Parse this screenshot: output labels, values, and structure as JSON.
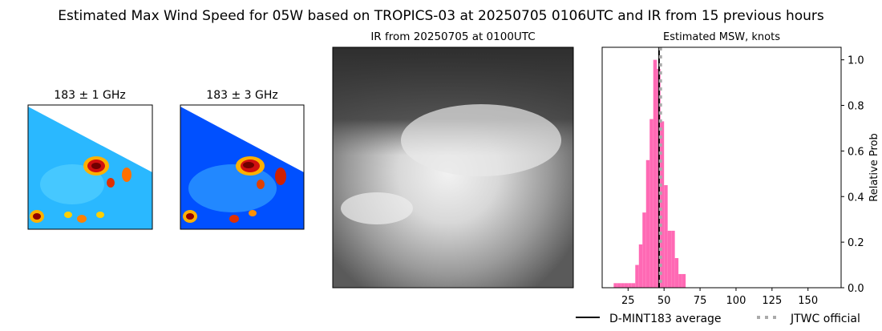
{
  "title": "Estimated Max Wind Speed for 05W based on TROPICS-03 at 20250705 0106UTC and IR from 15 previous hours",
  "panels": [
    {
      "title": "183 ± 1 GHz"
    },
    {
      "title": "183 ± 3 GHz"
    },
    {
      "title": "IR from 20250705 at 0100UTC"
    }
  ],
  "chart_data": {
    "type": "histogram",
    "title": "Estimated MSW, knots",
    "ylabel": "Relative Prob",
    "bins": [
      15,
      17.5,
      20,
      22.5,
      25,
      27.5,
      30,
      32.5,
      35,
      37.5,
      40,
      42.5,
      45,
      47.5,
      50,
      52.5,
      55,
      57.5,
      60,
      62.5,
      65
    ],
    "values": [
      0.02,
      0.02,
      0.02,
      0.02,
      0.02,
      0.02,
      0.1,
      0.19,
      0.33,
      0.56,
      0.74,
      1.0,
      0.96,
      0.73,
      0.45,
      0.25,
      0.25,
      0.13,
      0.06,
      0.06
    ],
    "color": "#ff69b4",
    "xlim": [
      7,
      173
    ],
    "xticks": [
      25,
      50,
      75,
      100,
      125,
      150
    ],
    "ylim": [
      0,
      1.055
    ],
    "yticks": [
      {
        "value": 0,
        "label": "0.0"
      },
      {
        "value": 0.2,
        "label": "0.2"
      },
      {
        "value": 0.4,
        "label": "0.4"
      },
      {
        "value": 0.6,
        "label": "0.6"
      },
      {
        "value": 0.8,
        "label": "0.8"
      },
      {
        "value": 1.0,
        "label": "1.0"
      }
    ],
    "lines": [
      {
        "name": "D-MINT183 average",
        "value": 46.5,
        "color": "#000000",
        "style": "solid"
      },
      {
        "name": "JTWC official",
        "value": 47.5,
        "color": "#aaaaaa",
        "style": "dotted"
      }
    ]
  }
}
